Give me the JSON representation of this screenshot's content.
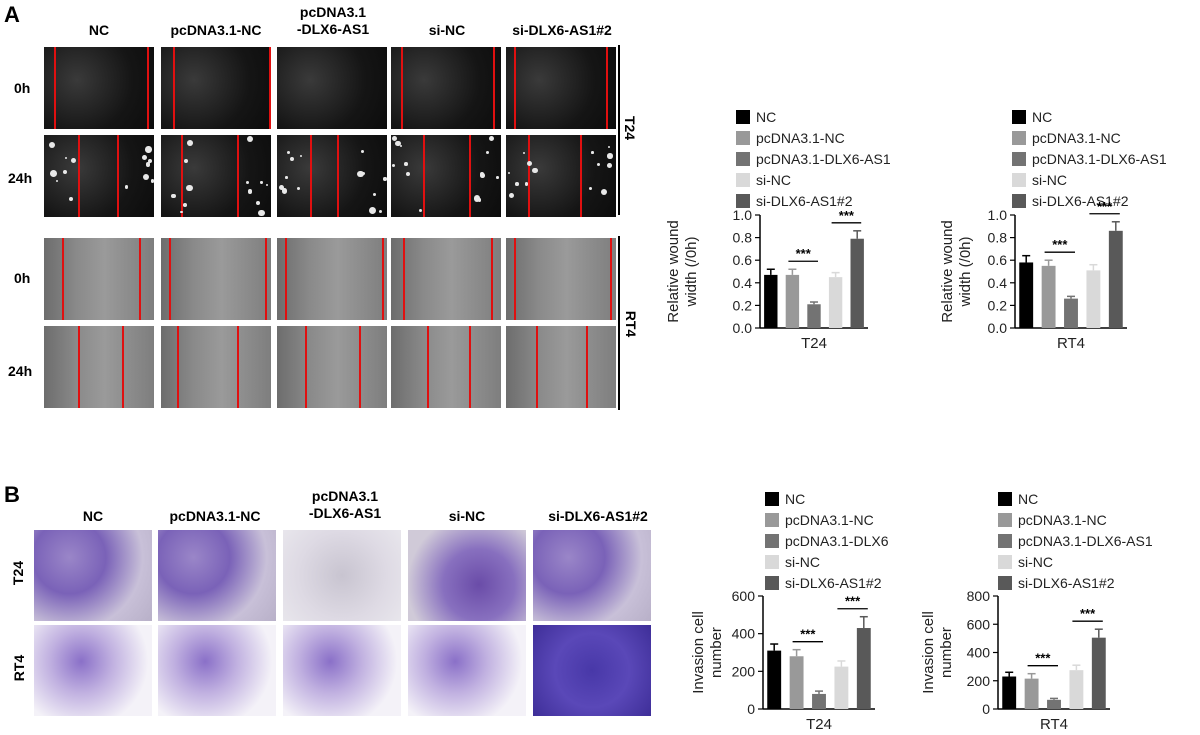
{
  "panel_a": {
    "letter": "A",
    "columns": [
      "NC",
      "pcDNA3.1-NC",
      "pcDNA3.1\n-DLX6-AS1",
      "si-NC",
      "si-DLX6-AS1#2"
    ],
    "rows": [
      "0h",
      "24h",
      "0h",
      "24h"
    ],
    "groups": [
      "T24",
      "RT4"
    ]
  },
  "panel_b": {
    "letter": "B",
    "columns": [
      "NC",
      "pcDNA3.1-NC",
      "pcDNA3.1\n-DLX6-AS1",
      "si-NC",
      "si-DLX6-AS1#2"
    ],
    "rows": [
      "T24",
      "RT4"
    ]
  },
  "chart_data": [
    {
      "type": "bar",
      "categories": [
        "NC",
        "pcDNA3.1-NC",
        "pcDNA3.1-DLX6-AS1",
        "si-NC",
        "si-DLX6-AS1#2"
      ],
      "legend": [
        "NC",
        "pcDNA3.1-NC",
        "pcDNA3.1-DLX6-AS1",
        "si-NC",
        "si-DLX6-AS1#2"
      ],
      "values": [
        0.47,
        0.47,
        0.21,
        0.45,
        0.79
      ],
      "errors": [
        0.05,
        0.05,
        0.02,
        0.04,
        0.07
      ],
      "xlabel": "T24",
      "ylabel": "Relative wound width (/0h)",
      "ylim": [
        0,
        1.0
      ],
      "yticks": [
        "0.0",
        "0.2",
        "0.4",
        "0.6",
        "0.8",
        "1.0"
      ],
      "significance": [
        {
          "from": 1,
          "to": 2,
          "label": "***"
        },
        {
          "from": 3,
          "to": 4,
          "label": "***"
        }
      ],
      "colors": [
        "#000000",
        "#999999",
        "#737373",
        "#d9d9d9",
        "#595959"
      ]
    },
    {
      "type": "bar",
      "categories": [
        "NC",
        "pcDNA3.1-NC",
        "pcDNA3.1-DLX6-AS1",
        "si-NC",
        "si-DLX6-AS1#2"
      ],
      "legend": [
        "NC",
        "pcDNA3.1-NC",
        "pcDNA3.1-DLX6-AS1",
        "si-NC",
        "si-DLX6-AS1#2"
      ],
      "values": [
        0.58,
        0.55,
        0.26,
        0.51,
        0.86
      ],
      "errors": [
        0.06,
        0.05,
        0.02,
        0.05,
        0.08
      ],
      "xlabel": "RT4",
      "ylabel": "Relative wound width (/0h)",
      "ylim": [
        0,
        1.0
      ],
      "yticks": [
        "0.0",
        "0.2",
        "0.4",
        "0.6",
        "0.8",
        "1.0"
      ],
      "significance": [
        {
          "from": 1,
          "to": 2,
          "label": "***"
        },
        {
          "from": 3,
          "to": 4,
          "label": "***"
        }
      ],
      "colors": [
        "#000000",
        "#999999",
        "#737373",
        "#d9d9d9",
        "#595959"
      ]
    },
    {
      "type": "bar",
      "categories": [
        "NC",
        "pcDNA3.1-NC",
        "pcDNA3.1-DLX6",
        "si-NC",
        "si-DLX6-AS1#2"
      ],
      "legend": [
        "NC",
        "pcDNA3.1-NC",
        "pcDNA3.1-DLX6",
        "si-NC",
        "si-DLX6-AS1#2"
      ],
      "values": [
        310,
        280,
        80,
        225,
        430
      ],
      "errors": [
        35,
        35,
        15,
        30,
        60
      ],
      "xlabel": "T24",
      "ylabel": "Invasion cell number",
      "ylim": [
        0,
        600
      ],
      "yticks": [
        "0",
        "200",
        "400",
        "600"
      ],
      "significance": [
        {
          "from": 1,
          "to": 2,
          "label": "***"
        },
        {
          "from": 3,
          "to": 4,
          "label": "***"
        }
      ],
      "colors": [
        "#000000",
        "#999999",
        "#737373",
        "#d9d9d9",
        "#595959"
      ]
    },
    {
      "type": "bar",
      "categories": [
        "NC",
        "pcDNA3.1-NC",
        "pcDNA3.1-DLX6-AS1",
        "si-NC",
        "si-DLX6-AS1#2"
      ],
      "legend": [
        "NC",
        "pcDNA3.1-NC",
        "pcDNA3.1-DLX6-AS1",
        "si-NC",
        "si-DLX6-AS1#2"
      ],
      "values": [
        230,
        215,
        65,
        275,
        505
      ],
      "errors": [
        30,
        35,
        10,
        35,
        60
      ],
      "xlabel": "RT4",
      "ylabel": "Invasion cell number",
      "ylim": [
        0,
        800
      ],
      "yticks": [
        "0",
        "200",
        "400",
        "600",
        "800"
      ],
      "significance": [
        {
          "from": 1,
          "to": 2,
          "label": "***"
        },
        {
          "from": 3,
          "to": 4,
          "label": "***"
        }
      ],
      "colors": [
        "#000000",
        "#999999",
        "#737373",
        "#d9d9d9",
        "#595959"
      ]
    }
  ]
}
